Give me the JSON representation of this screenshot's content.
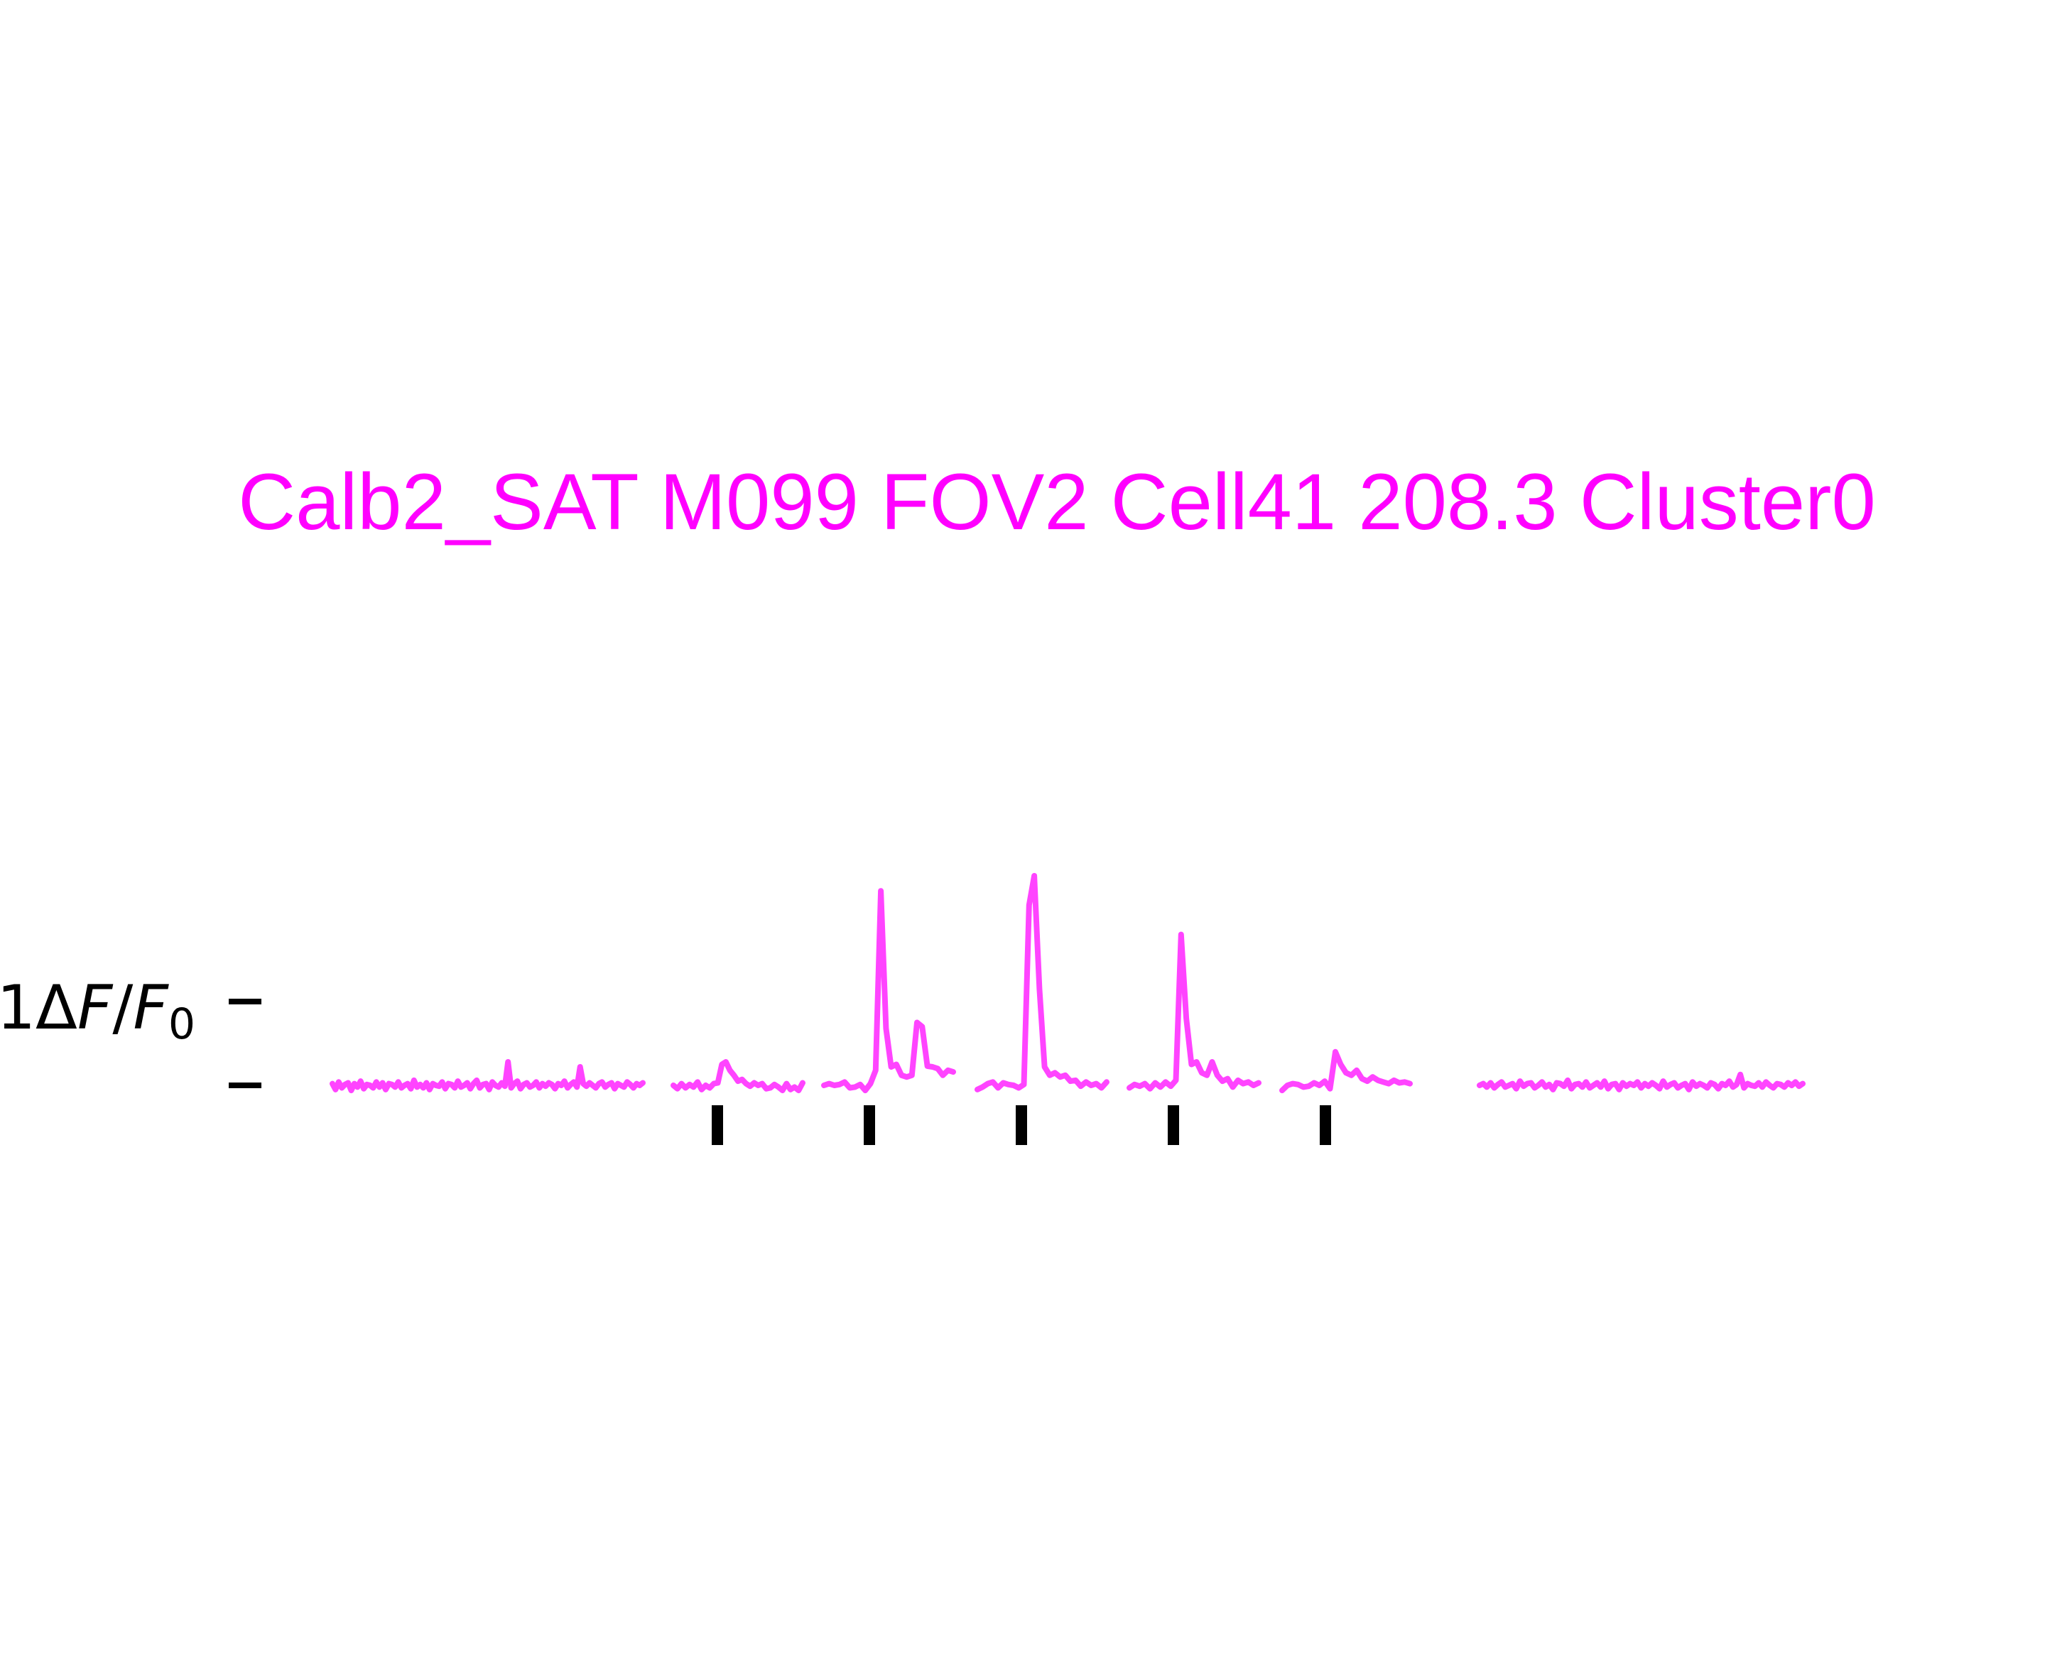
{
  "chart_data": {
    "type": "line",
    "title": "Calb2_SAT M099 FOV2 Cell41 208.3 Cluster0",
    "ylabel": {
      "prefix": "1",
      "delta": "Δ",
      "F": "F",
      "slash": "/",
      "F0": "F",
      "sub": "0"
    },
    "colors": {
      "trace": "#ff44ff",
      "title": "#ff00ff",
      "stim": "#000000",
      "scalebar": "#000000"
    },
    "scale_bar": {
      "value": 1,
      "unit": "ΔF/F0",
      "ticks": [
        0,
        1
      ]
    },
    "stimulus_markers": [
      1,
      2,
      3,
      4,
      5
    ],
    "segments": [
      {
        "name": "baseline-pre",
        "y": [
          0.02,
          -0.05,
          0.04,
          -0.03,
          0.01,
          0.03,
          -0.06,
          0.02,
          -0.02,
          0.05,
          -0.04,
          0.01,
          0.0,
          -0.03,
          0.04,
          -0.02,
          0.03,
          -0.05,
          0.02,
          0.01,
          -0.02,
          0.04,
          -0.03,
          0.0,
          0.02,
          -0.04,
          0.06,
          -0.02,
          0.01,
          -0.03,
          0.03,
          -0.05,
          0.02,
          0.0,
          -0.01,
          0.04,
          -0.04,
          0.02,
          0.01,
          -0.03,
          0.05,
          -0.02,
          0.0,
          0.03,
          -0.04,
          0.02,
          0.06,
          -0.03,
          0.01,
          0.02,
          -0.05,
          0.04,
          0.0,
          -0.02,
          0.03,
          -0.01,
          0.28,
          -0.03,
          0.02,
          0.05,
          -0.04,
          0.01,
          0.03,
          -0.02,
          0.0,
          0.04,
          -0.03,
          0.02,
          -0.01,
          0.03,
          0.01,
          -0.04,
          0.02,
          0.0,
          0.05,
          -0.03,
          0.01,
          0.04,
          -0.02,
          0.22,
          0.02,
          -0.01,
          0.03,
          0.0,
          -0.03,
          0.02,
          0.04,
          -0.02,
          0.01,
          0.03,
          -0.04,
          0.02,
          0.0,
          -0.02,
          0.04,
          0.01,
          -0.03,
          0.02,
          0.0,
          0.03
        ]
      },
      {
        "name": "stim-1",
        "y": [
          0.0,
          -0.04,
          0.02,
          -0.03,
          0.01,
          -0.02,
          0.04,
          -0.05,
          0.0,
          -0.03,
          0.02,
          0.03,
          0.25,
          0.28,
          0.18,
          0.12,
          0.05,
          0.07,
          0.02,
          -0.01,
          0.03,
          0.0,
          0.02,
          -0.04,
          -0.03,
          0.01,
          -0.02,
          -0.06,
          0.02,
          -0.05,
          -0.02,
          -0.06,
          0.03
        ]
      },
      {
        "name": "stim-2",
        "y": [
          0.0,
          0.02,
          0.0,
          0.01,
          0.04,
          -0.03,
          -0.02,
          0.01,
          -0.06,
          0.02,
          0.18,
          2.32,
          0.68,
          0.22,
          0.25,
          0.12,
          0.1,
          0.12,
          0.75,
          0.7,
          0.23,
          0.22,
          0.2,
          0.12,
          0.18,
          0.16
        ]
      },
      {
        "name": "stim-3",
        "y": [
          -0.05,
          -0.02,
          0.02,
          0.04,
          -0.03,
          0.03,
          0.01,
          0.0,
          -0.03,
          0.01,
          2.15,
          2.5,
          1.15,
          0.22,
          0.12,
          0.15,
          0.1,
          0.12,
          0.05,
          0.06,
          -0.01,
          0.04,
          0.0,
          0.02,
          -0.03,
          0.04
        ]
      },
      {
        "name": "stim-4",
        "y": [
          -0.03,
          0.01,
          -0.01,
          0.02,
          -0.04,
          0.03,
          -0.02,
          0.04,
          -0.01,
          0.06,
          1.8,
          0.8,
          0.25,
          0.28,
          0.15,
          0.12,
          0.28,
          0.12,
          0.05,
          0.08,
          -0.02,
          0.06,
          0.02,
          0.04,
          0.0,
          0.03
        ]
      },
      {
        "name": "stim-5",
        "y": [
          -0.06,
          0.0,
          0.02,
          0.01,
          -0.02,
          -0.01,
          0.03,
          0.0,
          0.05,
          -0.04,
          0.4,
          0.25,
          0.15,
          0.12,
          0.18,
          0.08,
          0.05,
          0.1,
          0.06,
          0.04,
          0.02,
          0.06,
          0.03,
          0.04,
          0.02
        ]
      },
      {
        "name": "baseline-post",
        "y": [
          0.0,
          0.02,
          -0.02,
          0.03,
          -0.03,
          0.01,
          0.04,
          -0.02,
          0.0,
          0.02,
          -0.04,
          0.05,
          -0.01,
          0.02,
          0.03,
          -0.03,
          0.0,
          0.04,
          -0.02,
          0.01,
          -0.05,
          0.03,
          0.02,
          -0.01,
          0.06,
          -0.04,
          0.01,
          0.02,
          -0.02,
          0.04,
          -0.03,
          0.0,
          0.03,
          -0.02,
          0.05,
          -0.04,
          0.01,
          0.02,
          -0.05,
          0.03,
          -0.01,
          0.02,
          0.0,
          0.04,
          -0.03,
          0.02,
          -0.01,
          0.03,
          0.0,
          -0.04,
          0.05,
          -0.02,
          0.01,
          0.03,
          -0.03,
          0.0,
          0.02,
          -0.05,
          0.04,
          -0.01,
          0.02,
          0.0,
          -0.03,
          0.03,
          0.01,
          -0.04,
          0.02,
          0.0,
          0.05,
          -0.02,
          0.01,
          0.13,
          -0.03,
          0.02,
          0.0,
          -0.01,
          0.03,
          -0.02,
          0.04,
          0.0,
          -0.03,
          0.02,
          0.01,
          -0.02,
          0.03,
          0.0,
          0.04,
          -0.01,
          0.02
        ]
      }
    ]
  }
}
